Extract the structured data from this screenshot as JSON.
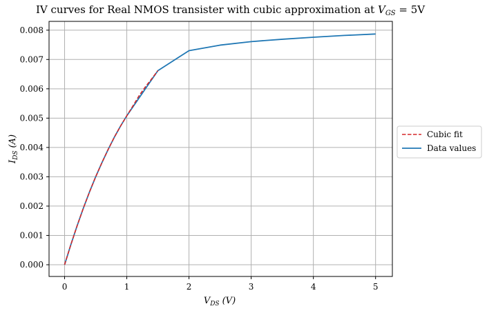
{
  "chart_data": {
    "type": "line",
    "title_main": "IV curves for Real NMOS transister with cubic approximation at ",
    "title_math": "V",
    "title_math_sub": "GS",
    "title_math_tail": " = 5V",
    "xlabel": "V_DS (V)",
    "xlabel_var": "V",
    "xlabel_sub": "DS",
    "xlabel_unit": "(V)",
    "ylabel": "I_DS (A)",
    "ylabel_var": "I",
    "ylabel_sub": "DS",
    "ylabel_unit": "(A)",
    "xlim": [
      -0.25,
      5.27
    ],
    "ylim": [
      -0.0004,
      0.0083
    ],
    "x_ticks": [
      0,
      1,
      2,
      3,
      4,
      5
    ],
    "x_tick_labels": [
      "0",
      "1",
      "2",
      "3",
      "4",
      "5"
    ],
    "y_ticks": [
      0.0,
      0.001,
      0.002,
      0.003,
      0.004,
      0.005,
      0.006,
      0.007,
      0.008
    ],
    "y_tick_labels": [
      "0.000",
      "0.001",
      "0.002",
      "0.003",
      "0.004",
      "0.005",
      "0.006",
      "0.007",
      "0.008"
    ],
    "grid": true,
    "legend_position": "center-right outside",
    "series": [
      {
        "name": "Cubic fit",
        "style": "dashed",
        "color": "#d62728",
        "x": [
          0,
          0.1,
          0.2,
          0.3,
          0.4,
          0.5,
          0.6,
          0.7,
          0.8,
          0.9,
          1.0,
          1.1,
          1.2,
          1.3,
          1.4,
          1.5
        ],
        "y": [
          0.0,
          0.00068,
          0.00132,
          0.00192,
          0.00248,
          0.003,
          0.00348,
          0.00393,
          0.00435,
          0.00473,
          0.00508,
          0.00542,
          0.00577,
          0.00607,
          0.00634,
          0.00662
        ]
      },
      {
        "name": "Data values",
        "style": "solid",
        "color": "#1f77b4",
        "x": [
          0,
          0.1,
          0.2,
          0.3,
          0.4,
          0.5,
          0.6,
          0.7,
          0.8,
          0.9,
          1.0,
          1.5,
          2.0,
          2.5,
          3.0,
          3.5,
          4.0,
          4.5,
          5.0
        ],
        "y": [
          0.0,
          0.00068,
          0.00132,
          0.00192,
          0.00248,
          0.003,
          0.00348,
          0.00393,
          0.00435,
          0.00473,
          0.00508,
          0.00662,
          0.0073,
          0.00749,
          0.00761,
          0.00769,
          0.00776,
          0.00782,
          0.00787
        ]
      }
    ]
  }
}
